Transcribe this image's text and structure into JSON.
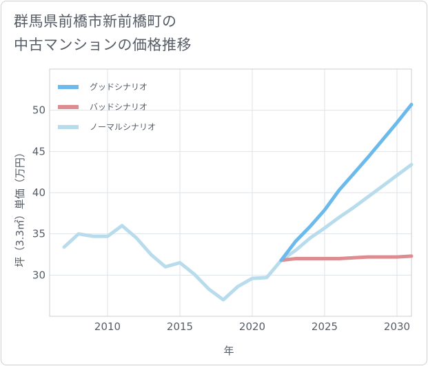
{
  "chart_data": {
    "type": "line",
    "title_line1": "群馬県前橋市新前橋町の",
    "title_line2": "中古マンションの価格推移",
    "xlabel": "年",
    "ylabel": "坪（3.3㎡）単価（万円）",
    "xlim": [
      2006,
      2031
    ],
    "ylim": [
      25,
      55
    ],
    "x_ticks": [
      2010,
      2015,
      2020,
      2025,
      2030
    ],
    "y_ticks": [
      30,
      35,
      40,
      45,
      50
    ],
    "series": [
      {
        "name": "グッドシナリオ",
        "color": "#6cbaec",
        "x": [
          2022,
          2023,
          2024,
          2025,
          2026,
          2027,
          2028,
          2029,
          2030,
          2031
        ],
        "values": [
          31.8,
          34.1,
          35.9,
          37.9,
          40.3,
          42.3,
          44.3,
          46.4,
          48.5,
          50.7
        ]
      },
      {
        "name": "バッドシナリオ",
        "color": "#de8c8f",
        "x": [
          2022,
          2023,
          2024,
          2025,
          2026,
          2027,
          2028,
          2029,
          2030,
          2031
        ],
        "values": [
          31.8,
          32.0,
          32.0,
          32.0,
          32.0,
          32.1,
          32.2,
          32.2,
          32.2,
          32.3
        ]
      },
      {
        "name": "ノーマルシナリオ",
        "color": "#b9dcec",
        "x": [
          2007,
          2008,
          2009,
          2010,
          2011,
          2012,
          2013,
          2014,
          2015,
          2016,
          2017,
          2018,
          2019,
          2020,
          2021,
          2022,
          2023,
          2024,
          2025,
          2026,
          2027,
          2028,
          2029,
          2030,
          2031
        ],
        "values": [
          33.4,
          35.0,
          34.7,
          34.7,
          36.0,
          34.5,
          32.5,
          31.0,
          31.5,
          30.1,
          28.3,
          27.0,
          28.6,
          29.6,
          29.7,
          31.8,
          33.0,
          34.5,
          35.7,
          37.0,
          38.2,
          39.5,
          40.8,
          42.1,
          43.4
        ]
      }
    ]
  }
}
